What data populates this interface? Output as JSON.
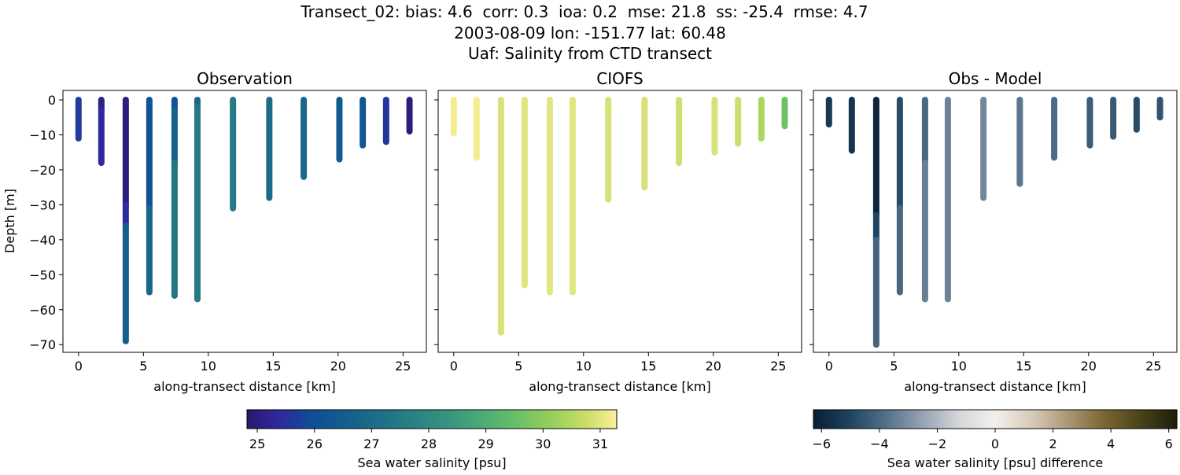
{
  "suptitle": [
    "Transect_02: bias: 4.6  corr: 0.3  ioa: 0.2  mse: 21.8  ss: -25.4  rmse: 4.7",
    "2003-08-09 lon: -151.77 lat: 60.48",
    "Uaf: Salinity from CTD transect"
  ],
  "chart_data": [
    {
      "type": "scatter",
      "title": "Observation",
      "xlabel": "along-transect distance [km]",
      "ylabel": "Depth [m]",
      "xlim": [
        -1.2,
        26.8
      ],
      "ylim": [
        -72.2,
        2.7
      ],
      "xticks": [
        0,
        5,
        10,
        15,
        20,
        25
      ],
      "yticks": [
        0,
        -10,
        -20,
        -30,
        -40,
        -50,
        -60,
        -70
      ],
      "colormap": "salinity",
      "stations": [
        {
          "x": 0,
          "segments": [
            {
              "top": 0,
              "bottom": -11,
              "value": 25.7
            }
          ]
        },
        {
          "x": 1.76,
          "segments": [
            {
              "top": 0,
              "bottom": -3,
              "value": 25.1
            },
            {
              "top": -3,
              "bottom": -18,
              "value": 25.4
            }
          ]
        },
        {
          "x": 3.64,
          "segments": [
            {
              "top": 0,
              "bottom": -30,
              "value": 25.0
            },
            {
              "top": -30,
              "bottom": -36,
              "value": 25.4
            },
            {
              "top": -36,
              "bottom": -69,
              "value": 26.6
            }
          ]
        },
        {
          "x": 5.46,
          "segments": [
            {
              "top": 0,
              "bottom": -31,
              "value": 26.1
            },
            {
              "top": -31,
              "bottom": -55,
              "value": 26.8
            }
          ]
        },
        {
          "x": 7.4,
          "segments": [
            {
              "top": 0,
              "bottom": -3,
              "value": 26.1
            },
            {
              "top": -3,
              "bottom": -18,
              "value": 26.7
            },
            {
              "top": -18,
              "bottom": -56,
              "value": 27.4
            }
          ]
        },
        {
          "x": 9.16,
          "segments": [
            {
              "top": 0,
              "bottom": -2,
              "value": 26.9
            },
            {
              "top": -2,
              "bottom": -57,
              "value": 27.5
            }
          ]
        },
        {
          "x": 11.9,
          "segments": [
            {
              "top": 0,
              "bottom": -31,
              "value": 27.5
            }
          ]
        },
        {
          "x": 14.7,
          "segments": [
            {
              "top": 0,
              "bottom": -28,
              "value": 27.0
            }
          ]
        },
        {
          "x": 17.35,
          "segments": [
            {
              "top": 0,
              "bottom": -22,
              "value": 26.9
            }
          ]
        },
        {
          "x": 20.1,
          "segments": [
            {
              "top": 0,
              "bottom": -17,
              "value": 26.4
            }
          ]
        },
        {
          "x": 21.9,
          "segments": [
            {
              "top": 0,
              "bottom": -13,
              "value": 26.3
            }
          ]
        },
        {
          "x": 23.7,
          "segments": [
            {
              "top": 0,
              "bottom": -12,
              "value": 25.6
            }
          ]
        },
        {
          "x": 25.5,
          "segments": [
            {
              "top": 0,
              "bottom": -9,
              "value": 25.0
            }
          ]
        }
      ]
    },
    {
      "type": "scatter",
      "title": "CIOFS",
      "xlabel": "along-transect distance [km]",
      "xlim": [
        -1.2,
        26.8
      ],
      "ylim": [
        -72.2,
        2.7
      ],
      "xticks": [
        0,
        5,
        10,
        15,
        20,
        25
      ],
      "yticks": [
        0,
        -10,
        -20,
        -30,
        -40,
        -50,
        -60,
        -70
      ],
      "colormap": "salinity",
      "stations": [
        {
          "x": 0,
          "segments": [
            {
              "top": 0,
              "bottom": -9.5,
              "value": 31.2
            }
          ]
        },
        {
          "x": 1.76,
          "segments": [
            {
              "top": 0,
              "bottom": -16.5,
              "value": 31.2
            }
          ]
        },
        {
          "x": 3.64,
          "segments": [
            {
              "top": 0,
              "bottom": -66.5,
              "value": 30.9
            }
          ]
        },
        {
          "x": 5.46,
          "segments": [
            {
              "top": 0,
              "bottom": -53,
              "value": 31.0
            }
          ]
        },
        {
          "x": 7.4,
          "segments": [
            {
              "top": 0,
              "bottom": -55,
              "value": 31.0
            }
          ]
        },
        {
          "x": 9.16,
          "segments": [
            {
              "top": 0,
              "bottom": -55,
              "value": 31.0
            }
          ]
        },
        {
          "x": 11.9,
          "segments": [
            {
              "top": 0,
              "bottom": -28.5,
              "value": 30.9
            }
          ]
        },
        {
          "x": 14.7,
          "segments": [
            {
              "top": 0,
              "bottom": -25,
              "value": 30.9
            }
          ]
        },
        {
          "x": 17.35,
          "segments": [
            {
              "top": 0,
              "bottom": -18,
              "value": 30.8
            }
          ]
        },
        {
          "x": 20.1,
          "segments": [
            {
              "top": 0,
              "bottom": -15,
              "value": 30.9
            }
          ]
        },
        {
          "x": 21.9,
          "segments": [
            {
              "top": 0,
              "bottom": -12.5,
              "value": 30.8
            }
          ]
        },
        {
          "x": 23.7,
          "segments": [
            {
              "top": 0,
              "bottom": -11,
              "value": 30.4
            }
          ]
        },
        {
          "x": 25.5,
          "segments": [
            {
              "top": 0,
              "bottom": -7.5,
              "value": 29.6
            }
          ]
        }
      ]
    },
    {
      "type": "scatter",
      "title": "Obs - Model",
      "xlabel": "along-transect distance [km]",
      "xlim": [
        -1.2,
        26.8
      ],
      "ylim": [
        -72.2,
        2.7
      ],
      "xticks": [
        0,
        5,
        10,
        15,
        20,
        25
      ],
      "yticks": [
        0,
        -10,
        -20,
        -30,
        -40,
        -50,
        -60,
        -70
      ],
      "colormap": "difference",
      "stations": [
        {
          "x": 0,
          "segments": [
            {
              "top": 0,
              "bottom": -7,
              "value": -5.4
            }
          ]
        },
        {
          "x": 1.76,
          "segments": [
            {
              "top": 0,
              "bottom": -14.5,
              "value": -5.5
            }
          ]
        },
        {
          "x": 3.64,
          "segments": [
            {
              "top": 0,
              "bottom": -33,
              "value": -6.0
            },
            {
              "top": -33,
              "bottom": -40,
              "value": -5.0
            },
            {
              "top": -40,
              "bottom": -70,
              "value": -4.1
            }
          ]
        },
        {
          "x": 5.46,
          "segments": [
            {
              "top": 0,
              "bottom": -31,
              "value": -4.8
            },
            {
              "top": -31,
              "bottom": -55,
              "value": -4.0
            }
          ]
        },
        {
          "x": 7.4,
          "segments": [
            {
              "top": 0,
              "bottom": -18,
              "value": -4.0
            },
            {
              "top": -18,
              "bottom": -57,
              "value": -3.4
            }
          ]
        },
        {
          "x": 9.16,
          "segments": [
            {
              "top": 0,
              "bottom": -57,
              "value": -3.3
            }
          ]
        },
        {
          "x": 11.9,
          "segments": [
            {
              "top": 0,
              "bottom": -28,
              "value": -3.2
            }
          ]
        },
        {
          "x": 14.7,
          "segments": [
            {
              "top": 0,
              "bottom": -24,
              "value": -3.6
            }
          ]
        },
        {
          "x": 17.35,
          "segments": [
            {
              "top": 0,
              "bottom": -16.5,
              "value": -3.9
            }
          ]
        },
        {
          "x": 20.1,
          "segments": [
            {
              "top": 0,
              "bottom": -13,
              "value": -4.3
            }
          ]
        },
        {
          "x": 21.9,
          "segments": [
            {
              "top": 0,
              "bottom": -10.5,
              "value": -4.4
            }
          ]
        },
        {
          "x": 23.7,
          "segments": [
            {
              "top": 0,
              "bottom": -8.5,
              "value": -4.8
            }
          ]
        },
        {
          "x": 25.5,
          "segments": [
            {
              "top": 0,
              "bottom": -5,
              "value": -4.6
            }
          ]
        }
      ]
    }
  ],
  "colorbars": {
    "salinity": {
      "label": "Sea water salinity [psu]",
      "range": [
        24.82,
        31.29
      ],
      "ticks": [
        25,
        26,
        27,
        28,
        29,
        30,
        31
      ],
      "tick_labels": [
        "25",
        "26",
        "27",
        "28",
        "29",
        "30",
        "31"
      ],
      "colors": [
        "#2a186c",
        "#2e2a9f",
        "#0f4f95",
        "#145f8d",
        "#1f7086",
        "#2a8284",
        "#37947f",
        "#4cab77",
        "#68bf67",
        "#95ce5c",
        "#c6dc66",
        "#fdef9a"
      ]
    },
    "difference": {
      "label": "Sea water salinity [psu] difference",
      "range": [
        -6.28,
        6.28
      ],
      "ticks": [
        -6,
        -4,
        -2,
        0,
        2,
        4,
        6
      ],
      "tick_labels": [
        "−6",
        "−4",
        "−2",
        "0",
        "2",
        "4",
        "6"
      ],
      "colors": [
        "#091d33",
        "#1e4461",
        "#53708a",
        "#96a3b2",
        "#d4d6da",
        "#f3efec",
        "#d7cbba",
        "#ab9774",
        "#7a6634",
        "#4a4319",
        "#1c1e0e"
      ]
    }
  }
}
